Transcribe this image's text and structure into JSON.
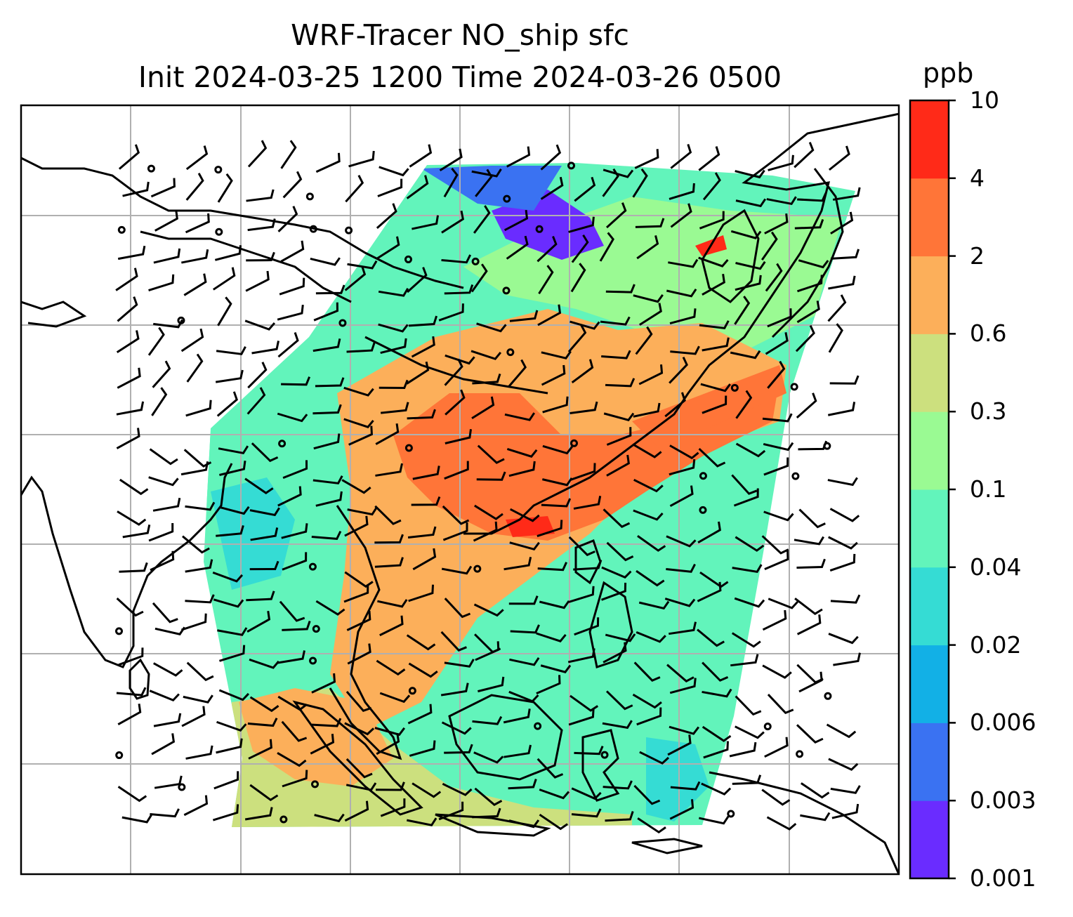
{
  "title": {
    "line1": "WRF-Tracer NO_ship sfc",
    "line2": "Init 2024-03-25 1200 Time 2024-03-26 0500"
  },
  "colorbar": {
    "unit": "ppb",
    "tick_labels": [
      "0.001",
      "0.003",
      "0.006",
      "0.02",
      "0.04",
      "0.1",
      "0.3",
      "0.6",
      "2",
      "4",
      "10"
    ],
    "colors": [
      "#6a2cff",
      "#3a72f2",
      "#12b0e6",
      "#35dcd4",
      "#62f4bb",
      "#9afa93",
      "#cce07e",
      "#fcaf5a",
      "#ff7538",
      "#ff2a18"
    ]
  },
  "map": {
    "region": "South and East Asia",
    "gridlines": true,
    "coastlines": true,
    "wind_barbs": true,
    "field_colors": {
      "low": "#6a2cff",
      "very_low": "#3a72f2",
      "trace": "#35dcd4",
      "light": "#62f4bb",
      "moderate": "#9afa93",
      "mid": "#cce07e",
      "high": "#fcaf5a",
      "very_high": "#ff7538",
      "peak": "#ff2a18"
    }
  }
}
